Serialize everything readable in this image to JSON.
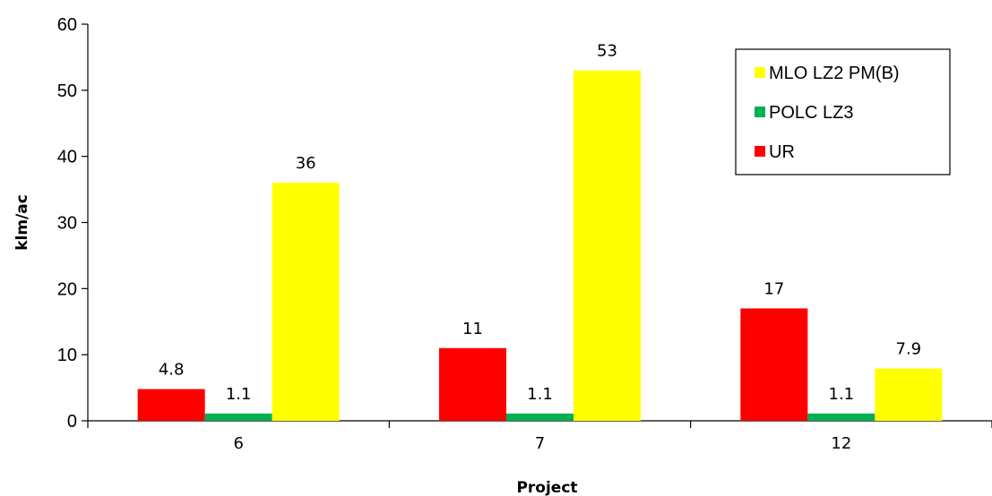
{
  "chart_data": {
    "type": "bar",
    "categories": [
      "6",
      "7",
      "12"
    ],
    "series": [
      {
        "name": "UR",
        "values": [
          4.8,
          11,
          17
        ],
        "labels": [
          "4.8",
          "11",
          "17"
        ],
        "color": "#ff0000"
      },
      {
        "name": "POLC LZ3",
        "values": [
          1.1,
          1.1,
          1.1
        ],
        "labels": [
          "1.1",
          "1.1",
          "1.1"
        ],
        "color": "#00b050"
      },
      {
        "name": "MLO LZ2 PM(B)",
        "values": [
          36,
          53,
          7.9
        ],
        "labels": [
          "36",
          "53",
          "7.9"
        ],
        "color": "#ffff00"
      }
    ],
    "legend_order": [
      "MLO LZ2 PM(B)",
      "POLC LZ3",
      "UR"
    ],
    "xlabel": "Project",
    "ylabel": "klm/ac",
    "ylim": [
      0,
      60
    ],
    "yticks": [
      "0",
      "10",
      "20",
      "30",
      "40",
      "50",
      "60"
    ],
    "grid": false,
    "legend_position": "top-right"
  }
}
